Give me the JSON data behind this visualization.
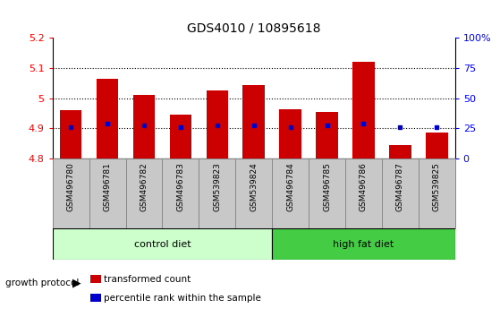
{
  "title": "GDS4010 / 10895618",
  "samples": [
    "GSM496780",
    "GSM496781",
    "GSM496782",
    "GSM496783",
    "GSM539823",
    "GSM539824",
    "GSM496784",
    "GSM496785",
    "GSM496786",
    "GSM496787",
    "GSM539825"
  ],
  "transformed_counts": [
    4.96,
    5.065,
    5.01,
    4.945,
    5.025,
    5.045,
    4.965,
    4.955,
    5.12,
    4.845,
    4.885
  ],
  "percentile_values": [
    4.905,
    4.915,
    4.91,
    4.905,
    4.91,
    4.91,
    4.905,
    4.91,
    4.915,
    4.905,
    4.905
  ],
  "ylim": [
    4.8,
    5.2
  ],
  "yticks": [
    4.8,
    4.9,
    5.0,
    5.1,
    5.2
  ],
  "ytick_labels": [
    "4.8",
    "4.9",
    "5",
    "5.1",
    "5.2"
  ],
  "right_ytick_pcts": [
    0,
    25,
    50,
    75,
    100
  ],
  "right_ylabels": [
    "0",
    "25",
    "50",
    "75",
    "100%"
  ],
  "groups": [
    {
      "label": "control diet",
      "start": 0,
      "end": 6,
      "color": "#ccffcc"
    },
    {
      "label": "high fat diet",
      "start": 6,
      "end": 11,
      "color": "#44cc44"
    }
  ],
  "bar_color": "#cc0000",
  "dot_color": "#0000cc",
  "bar_width": 0.6,
  "sample_bg_color": "#c8c8c8",
  "sample_border_color": "#888888",
  "protocol_label": "growth protocol",
  "legend_items": [
    "transformed count",
    "percentile rank within the sample"
  ],
  "legend_colors": [
    "#cc0000",
    "#0000cc"
  ]
}
